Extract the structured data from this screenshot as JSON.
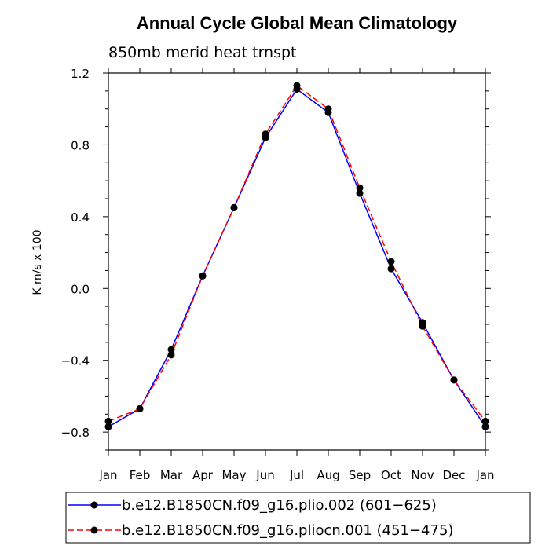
{
  "chart_data": {
    "type": "line",
    "title": "Annual Cycle Global Mean Climatology",
    "subtitle": "850mb merid heat trnspt",
    "xlabel": "",
    "ylabel": "K m/s x 100",
    "categories": [
      "Jan",
      "Feb",
      "Mar",
      "Apr",
      "May",
      "Jun",
      "Jul",
      "Aug",
      "Sep",
      "Oct",
      "Nov",
      "Dec",
      "Jan"
    ],
    "yticks": [
      "-0.8",
      "-0.4",
      "0.0",
      "0.4",
      "0.8",
      "1.2"
    ],
    "ylim": [
      -0.9,
      1.2
    ],
    "grid": false,
    "legend_position": "bottom",
    "series": [
      {
        "name": "b.e12.B1850CN.f09_g16.plio.002 (601−625)",
        "color": "#0000ff",
        "line_style": "solid",
        "marker": "filled-circle",
        "values": [
          -0.77,
          -0.67,
          -0.34,
          0.07,
          0.45,
          0.84,
          1.11,
          0.98,
          0.53,
          0.11,
          -0.19,
          -0.51,
          -0.77
        ]
      },
      {
        "name": "b.e12.B1850CN.f09_g16.pliocn.001 (451−475)",
        "color": "#ff0000",
        "line_style": "dashed",
        "marker": "filled-circle",
        "values": [
          -0.74,
          -0.67,
          -0.37,
          0.07,
          0.45,
          0.86,
          1.13,
          1.0,
          0.56,
          0.15,
          -0.21,
          -0.51,
          -0.74
        ]
      }
    ]
  }
}
